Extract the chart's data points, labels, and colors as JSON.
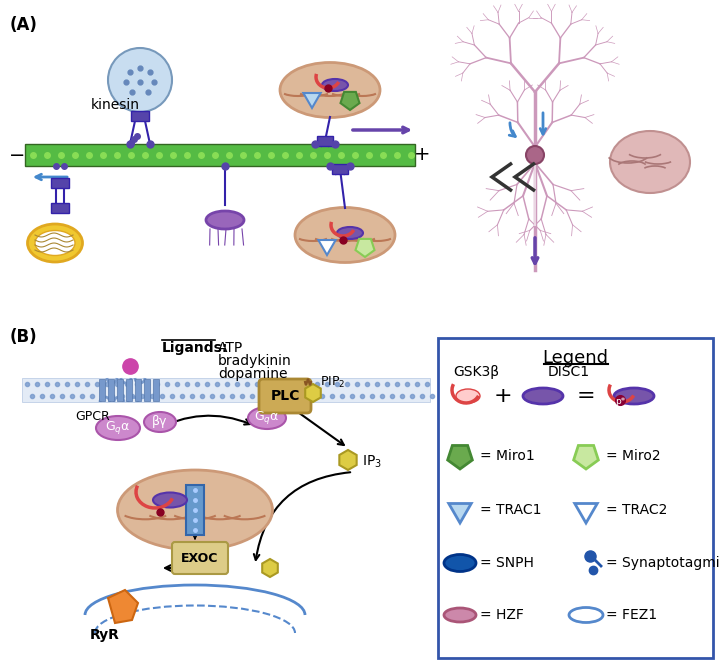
{
  "panel_A_label": "(A)",
  "panel_B_label": "(B)",
  "bg_color": "#ffffff",
  "legend_title": "Legend",
  "microtubule_color": "#55bb44",
  "microtubule_dot": "#88dd55",
  "arrow_blue": "#4488cc",
  "arrow_purple": "#6644aa",
  "motor_color": "#5544aa",
  "motor_edge": "#3322aa",
  "vesicle_fill": "#c8ddf0",
  "vesicle_edge": "#7799bb",
  "vesicle_dot": "#6688bb",
  "lipid_fill": "#f0c830",
  "lipid_edge": "#e0a820",
  "mito_outer": "#cc9977",
  "mito_inner_fill": "#ddb899",
  "mito_fold": "#bb7755",
  "disc1_color": "#7755aa",
  "disc1_edge": "#5533aa",
  "gsk3b_color": "#dd4444",
  "penta_dark_fill": "#6aaa4e",
  "penta_dark_edge": "#448833",
  "penta_light_fill": "#c8e8a0",
  "penta_light_edge": "#88cc55",
  "tri_fill": "#b8d8f0",
  "tri_edge": "#5588cc",
  "neuron_color": "#cc99bb",
  "neuron_body": "#aa6688",
  "brain_color": "#cc9999",
  "brain_fold": "#aa7777",
  "mem_fill": "#aabbdd",
  "mem_dots": "#7799cc",
  "gpcr_helix": "#7799cc",
  "gpcr_helix_edge": "#5577aa",
  "ligand_dot": "#cc44aa",
  "gq_fill": "#cc88cc",
  "gq_edge": "#aa55aa",
  "plc_fill": "#ccaa55",
  "plc_edge": "#aa8833",
  "hex_fill": "#ddcc44",
  "hex_edge": "#aa9922",
  "chan_fill": "#5588cc",
  "chan_edge": "#3366aa",
  "exoc_fill": "#ddcc88",
  "exoc_edge": "#aa9944",
  "er_color": "#5588cc",
  "ryr_fill": "#ee8833",
  "ryr_edge": "#cc6611",
  "snph_fill": "#1155aa",
  "snph_edge": "#003388",
  "synap_color": "#2255aa",
  "hzf_fill": "#cc88aa",
  "hzf_edge": "#aa5577",
  "fez1_edge": "#5588cc",
  "legend_border": "#3355aa"
}
